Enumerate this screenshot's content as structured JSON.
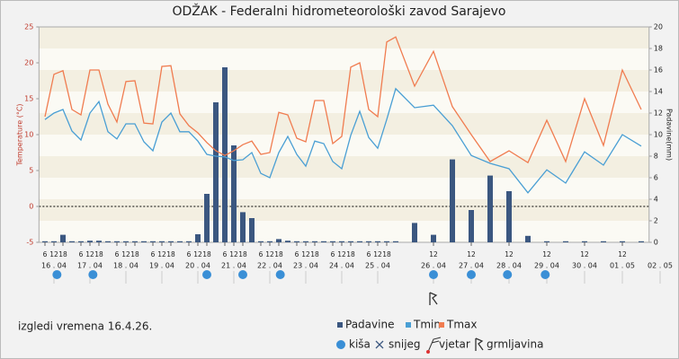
{
  "chart_data": {
    "type": "weather",
    "title": "ODŽAK - Federalni hidrometeorološki zavod Sarajevo",
    "note": "izgledi vremena 16.4.26.",
    "y_label": "Temperature (°C)",
    "y2_label": "Padavine(mm)",
    "x": [
      6,
      12,
      18,
      24,
      30,
      36,
      42,
      48,
      54,
      60,
      66,
      72,
      78,
      84,
      90,
      96,
      102,
      108,
      114,
      120,
      126,
      132,
      138,
      144,
      150,
      156,
      162,
      168,
      174,
      180,
      186,
      192,
      198,
      204,
      210,
      216,
      222,
      228,
      234,
      240,
      246,
      252,
      264,
      276,
      288,
      300,
      312,
      324,
      336,
      348,
      360,
      372,
      384
    ],
    "xlim": [
      2,
      389
    ],
    "xticks": [
      6,
      12,
      18,
      {
        "value": 30,
        "label": "6"
      },
      {
        "value": 36,
        "label": "12"
      },
      {
        "value": 42,
        "label": "18"
      },
      {
        "value": 54,
        "label": "6"
      },
      {
        "value": 60,
        "label": "12"
      },
      {
        "value": 66,
        "label": "18"
      },
      {
        "value": 78,
        "label": "6"
      },
      {
        "value": 84,
        "label": "12"
      },
      {
        "value": 90,
        "label": "18"
      },
      {
        "value": 102,
        "label": "6"
      },
      {
        "value": 108,
        "label": "12"
      },
      {
        "value": 114,
        "label": "18"
      },
      {
        "value": 126,
        "label": "6"
      },
      {
        "value": 132,
        "label": "12"
      },
      {
        "value": 138,
        "label": "18"
      },
      {
        "value": 150,
        "label": "6"
      },
      {
        "value": 156,
        "label": "12"
      },
      {
        "value": 162,
        "label": "18"
      },
      {
        "value": 174,
        "label": "6"
      },
      {
        "value": 180,
        "label": "12"
      },
      {
        "value": 186,
        "label": "18"
      },
      {
        "value": 198,
        "label": "6"
      },
      {
        "value": 204,
        "label": "12"
      },
      {
        "value": 210,
        "label": "18"
      },
      {
        "value": 222,
        "label": "6"
      },
      {
        "value": 228,
        "label": "12"
      },
      {
        "value": 234,
        "label": "18"
      },
      {
        "value": 252,
        "label": "12"
      },
      {
        "value": 276,
        "label": "12"
      },
      {
        "value": 300,
        "label": "12"
      },
      {
        "value": 324,
        "label": "12"
      },
      {
        "value": 348,
        "label": "12"
      },
      {
        "value": 372,
        "label": "12"
      }
    ],
    "day_labels": [
      {
        "value": 12,
        "label": "16 . 04"
      },
      {
        "value": 36,
        "label": "17 . 04"
      },
      {
        "value": 60,
        "label": "18 . 04"
      },
      {
        "value": 84,
        "label": "19 . 04"
      },
      {
        "value": 108,
        "label": "20 . 04"
      },
      {
        "value": 132,
        "label": "21 . 04"
      },
      {
        "value": 156,
        "label": "22 . 04"
      },
      {
        "value": 180,
        "label": "23 . 04"
      },
      {
        "value": 204,
        "label": "24 . 04"
      },
      {
        "value": 228,
        "label": "25 . 04"
      },
      {
        "value": 252,
        "label": "26 . 04"
      },
      {
        "value": 276,
        "label": "27 . 04"
      },
      {
        "value": 300,
        "label": "28 . 04"
      },
      {
        "value": 324,
        "label": "29 . 04"
      },
      {
        "value": 348,
        "label": "30 . 04"
      },
      {
        "value": 372,
        "label": "01 . 05"
      },
      {
        "value": 396,
        "label": "02 . 05"
      }
    ],
    "ylim": [
      -5,
      25
    ],
    "yticks": [
      -5,
      0,
      5,
      10,
      15,
      20,
      25
    ],
    "y2lim": [
      0,
      20
    ],
    "y2ticks": [
      0,
      2,
      4,
      6,
      8,
      10,
      12,
      14,
      16,
      18,
      20
    ],
    "series": [
      {
        "name": "Padavine",
        "kind": "bar",
        "axis": "y2",
        "color": "#3b5780",
        "values": [
          0.1,
          0.1,
          0.7,
          0.1,
          0.1,
          0.15,
          0.15,
          0.1,
          0.1,
          0.1,
          0.1,
          0.1,
          0.1,
          0.1,
          0.1,
          0.1,
          0.1,
          0.75,
          4.5,
          13,
          16.25,
          9,
          2.8,
          2.25,
          0.1,
          0.1,
          0.3,
          0.15,
          0.1,
          0.1,
          0.1,
          0.1,
          0.1,
          0.1,
          0.1,
          0.1,
          0.1,
          0.1,
          0.1,
          0.1,
          1.8,
          0.7,
          7.7,
          3,
          6.2,
          4.75,
          0.6,
          0.1,
          0.1,
          0.1,
          0.1,
          0.1,
          0.1
        ]
      },
      {
        "name": "Tmin",
        "kind": "line",
        "color": "#4a9fd4",
        "values": [
          12.1,
          13,
          13.5,
          10.5,
          9.25,
          13,
          14.6,
          10.4,
          9.4,
          11.5,
          11.5,
          9,
          7.75,
          11.75,
          13,
          10.4,
          10.4,
          9.1,
          7.25,
          7,
          6.9,
          6.4,
          6.5,
          7.5,
          4.6,
          4,
          7.5,
          9.75,
          7.25,
          5.6,
          9.1,
          8.75,
          6.25,
          5.25,
          9.9,
          13.25,
          9.6,
          8.1,
          12.1,
          16.4,
          13.75,
          14.1,
          11.25,
          7.1,
          6,
          5.25,
          1.9,
          5.1,
          3.25,
          7.6,
          5.75,
          10,
          8.4
        ]
      },
      {
        "name": "Tmax",
        "kind": "line",
        "color": "#f07c50",
        "values": [
          12.5,
          18.4,
          18.9,
          13.5,
          12.75,
          19,
          19,
          14.25,
          11.75,
          17.4,
          17.5,
          11.6,
          11.5,
          19.5,
          19.6,
          12.9,
          11.25,
          10.25,
          8.9,
          7.75,
          7.1,
          7.75,
          8.6,
          9.1,
          7.25,
          7.5,
          13.1,
          12.75,
          9.5,
          9,
          14.75,
          14.75,
          8.75,
          9.75,
          19.4,
          20,
          13.5,
          12.5,
          22.9,
          23.6,
          16.75,
          21.6,
          13.9,
          10,
          6.25,
          7.75,
          6.1,
          12,
          6.25,
          15,
          8.5,
          19,
          13.5
        ]
      }
    ],
    "symbols": {
      "legend": [
        "kiša",
        "snijeg",
        "vjetar",
        "grmljavina"
      ],
      "rain": [
        14,
        38,
        114,
        138,
        163,
        252,
        276,
        299,
        323
      ],
      "thunder": [
        252
      ],
      "color": "#3a8fd6"
    }
  }
}
